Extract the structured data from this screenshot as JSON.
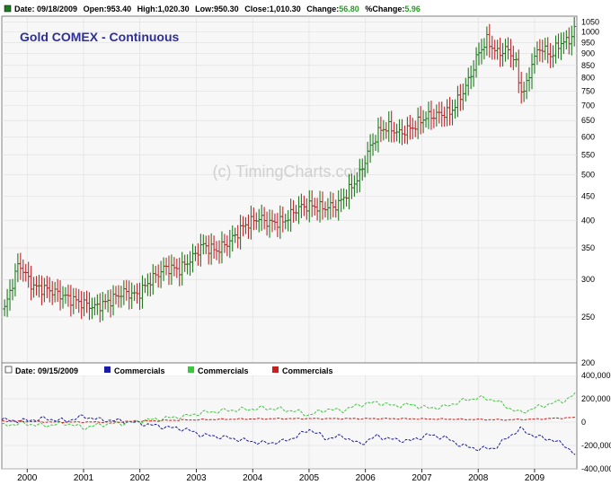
{
  "header": {
    "date": "Date: 09/18/2009",
    "open": "Open:953.40",
    "high": "High:1,020.30",
    "low": "Low:950.30",
    "close": "Close:1,010.30",
    "change_label": "Change:",
    "change_value": "56.80",
    "pct_label": "%Change:",
    "pct_value": "5.96"
  },
  "title": "Gold COMEX - Continuous",
  "watermark": "(c) TimingCharts.com",
  "colors": {
    "up": "#1e7a1e",
    "down": "#c0262c",
    "title": "#2f2f9c",
    "plot_bg": "#f7f7f7",
    "grid": "#dedede",
    "commercials_blue": "#1a1aa6",
    "commercials_green": "#3cc83c",
    "commercials_red": "#c81e1e",
    "change_text": "#1fa01f"
  },
  "cot_header": {
    "date": "Date: 09/15/2009",
    "series": [
      {
        "label": "Commercials",
        "color": "#1a1aa6"
      },
      {
        "label": "Commercials",
        "color": "#3cc83c"
      },
      {
        "label": "Commercials",
        "color": "#c81e1e"
      }
    ]
  },
  "chart_data": [
    {
      "type": "line",
      "subtype": "ohlc",
      "scale": "log",
      "title": "Gold COMEX - Continuous",
      "ylim": [
        200,
        1080
      ],
      "yticks": [
        1050,
        1000,
        950,
        900,
        850,
        800,
        750,
        700,
        650,
        600,
        550,
        500,
        450,
        400,
        350,
        300,
        250,
        200
      ],
      "xticks": [
        2000,
        2001,
        2002,
        2003,
        2004,
        2005,
        2006,
        2007,
        2008,
        2009
      ],
      "xlim": [
        1999.55,
        2009.75
      ],
      "series": [
        {
          "values": [
            [
              1999.6,
              260
            ],
            [
              1999.85,
              325
            ],
            [
              2000.1,
              290
            ],
            [
              2000.4,
              285
            ],
            [
              2000.7,
              275
            ],
            [
              2000.95,
              268
            ],
            [
              2001.2,
              262
            ],
            [
              2001.45,
              270
            ],
            [
              2001.7,
              282
            ],
            [
              2001.95,
              278
            ],
            [
              2002.2,
              300
            ],
            [
              2002.45,
              318
            ],
            [
              2002.7,
              315
            ],
            [
              2002.95,
              335
            ],
            [
              2003.1,
              355
            ],
            [
              2003.35,
              345
            ],
            [
              2003.6,
              362
            ],
            [
              2003.85,
              390
            ],
            [
              2004.1,
              405
            ],
            [
              2004.3,
              395
            ],
            [
              2004.55,
              398
            ],
            [
              2004.8,
              425
            ],
            [
              2005.0,
              430
            ],
            [
              2005.25,
              425
            ],
            [
              2005.5,
              430
            ],
            [
              2005.75,
              470
            ],
            [
              2005.9,
              500
            ],
            [
              2006.05,
              560
            ],
            [
              2006.25,
              620
            ],
            [
              2006.4,
              630
            ],
            [
              2006.6,
              610
            ],
            [
              2006.85,
              630
            ],
            [
              2007.05,
              660
            ],
            [
              2007.3,
              670
            ],
            [
              2007.5,
              675
            ],
            [
              2007.7,
              735
            ],
            [
              2007.85,
              800
            ],
            [
              2008.0,
              900
            ],
            [
              2008.15,
              960
            ],
            [
              2008.35,
              900
            ],
            [
              2008.5,
              920
            ],
            [
              2008.65,
              880
            ],
            [
              2008.75,
              750
            ],
            [
              2008.85,
              760
            ],
            [
              2008.95,
              860
            ],
            [
              2009.1,
              930
            ],
            [
              2009.3,
              890
            ],
            [
              2009.45,
              950
            ],
            [
              2009.6,
              955
            ],
            [
              2009.7,
              1010
            ]
          ]
        }
      ]
    },
    {
      "type": "line",
      "ylim": [
        -400000,
        400000
      ],
      "yticks": [
        400000,
        200000,
        0,
        -200000,
        -400000
      ],
      "ytick_labels": [
        "400,000",
        "200,000",
        "0",
        "-200,000",
        "-400,000"
      ],
      "xticks": [
        2000,
        2001,
        2002,
        2003,
        2004,
        2005,
        2006,
        2007,
        2008,
        2009
      ],
      "xlim": [
        1999.55,
        2009.75
      ],
      "series": [
        {
          "name": "Commercials",
          "color": "#1a1aa6",
          "values": [
            [
              1999.55,
              20000
            ],
            [
              1999.9,
              10000
            ],
            [
              2000.3,
              30000
            ],
            [
              2000.7,
              10000
            ],
            [
              2001.0,
              50000
            ],
            [
              2001.3,
              20000
            ],
            [
              2001.7,
              10000
            ],
            [
              2002.0,
              -10000
            ],
            [
              2002.4,
              -40000
            ],
            [
              2002.8,
              -60000
            ],
            [
              2003.1,
              -110000
            ],
            [
              2003.5,
              -130000
            ],
            [
              2003.9,
              -160000
            ],
            [
              2004.2,
              -180000
            ],
            [
              2004.5,
              -170000
            ],
            [
              2004.8,
              -120000
            ],
            [
              2005.0,
              -60000
            ],
            [
              2005.3,
              -140000
            ],
            [
              2005.6,
              -120000
            ],
            [
              2005.9,
              -190000
            ],
            [
              2006.2,
              -120000
            ],
            [
              2006.5,
              -150000
            ],
            [
              2006.8,
              -160000
            ],
            [
              2007.1,
              -110000
            ],
            [
              2007.4,
              -130000
            ],
            [
              2007.7,
              -200000
            ],
            [
              2008.0,
              -230000
            ],
            [
              2008.3,
              -220000
            ],
            [
              2008.55,
              -120000
            ],
            [
              2008.75,
              -60000
            ],
            [
              2009.0,
              -120000
            ],
            [
              2009.3,
              -150000
            ],
            [
              2009.55,
              -200000
            ],
            [
              2009.72,
              -280000
            ]
          ]
        },
        {
          "name": "Commercials",
          "color": "#3cc83c",
          "values": [
            [
              1999.55,
              -30000
            ],
            [
              1999.9,
              -10000
            ],
            [
              2000.3,
              -30000
            ],
            [
              2000.7,
              -10000
            ],
            [
              2001.0,
              -50000
            ],
            [
              2001.3,
              -20000
            ],
            [
              2001.7,
              -10000
            ],
            [
              2002.0,
              10000
            ],
            [
              2002.4,
              30000
            ],
            [
              2002.8,
              50000
            ],
            [
              2003.1,
              80000
            ],
            [
              2003.5,
              100000
            ],
            [
              2003.9,
              110000
            ],
            [
              2004.2,
              120000
            ],
            [
              2004.5,
              110000
            ],
            [
              2004.8,
              90000
            ],
            [
              2005.0,
              60000
            ],
            [
              2005.3,
              110000
            ],
            [
              2005.6,
              100000
            ],
            [
              2005.9,
              150000
            ],
            [
              2006.2,
              170000
            ],
            [
              2006.5,
              140000
            ],
            [
              2006.8,
              150000
            ],
            [
              2007.1,
              120000
            ],
            [
              2007.4,
              130000
            ],
            [
              2007.7,
              180000
            ],
            [
              2008.0,
              210000
            ],
            [
              2008.3,
              190000
            ],
            [
              2008.55,
              120000
            ],
            [
              2008.75,
              80000
            ],
            [
              2009.0,
              120000
            ],
            [
              2009.3,
              160000
            ],
            [
              2009.55,
              190000
            ],
            [
              2009.72,
              240000
            ]
          ]
        },
        {
          "name": "Commercials",
          "color": "#c81e1e",
          "values": [
            [
              1999.55,
              10000
            ],
            [
              2000.5,
              0
            ],
            [
              2001.5,
              0
            ],
            [
              2002.5,
              15000
            ],
            [
              2003.5,
              25000
            ],
            [
              2004.5,
              30000
            ],
            [
              2005.5,
              30000
            ],
            [
              2006.5,
              30000
            ],
            [
              2007.5,
              25000
            ],
            [
              2008.5,
              20000
            ],
            [
              2009.0,
              25000
            ],
            [
              2009.72,
              40000
            ]
          ]
        }
      ]
    }
  ]
}
